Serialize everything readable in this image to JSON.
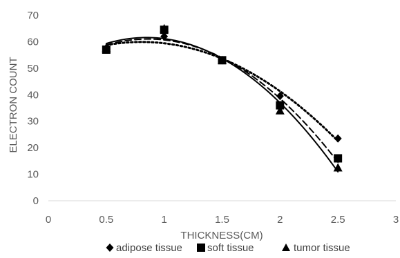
{
  "chart_data": {
    "type": "scatter",
    "xlabel": "THICKNESS(CM)",
    "ylabel": "ELECTRON COUNT",
    "xlim": [
      0,
      3
    ],
    "ylim": [
      0,
      70
    ],
    "xticks": [
      "0",
      "0.5",
      "1",
      "1.5",
      "2",
      "2.5",
      "3"
    ],
    "yticks": [
      "0",
      "10",
      "20",
      "30",
      "40",
      "50",
      "60",
      "70"
    ],
    "grid": false,
    "legend_position": "bottom",
    "series": [
      {
        "name": "adipose tissue",
        "marker": "diamond",
        "line": "dotted",
        "color": "#000000",
        "x": [
          0.5,
          1,
          1.5,
          2,
          2.5
        ],
        "y": [
          57.5,
          62,
          53,
          39.5,
          23.5
        ]
      },
      {
        "name": "soft tissue",
        "marker": "square",
        "line": "dashed",
        "color": "#000000",
        "x": [
          0.5,
          1,
          1.5,
          2,
          2.5
        ],
        "y": [
          57,
          64.5,
          53,
          36,
          16
        ]
      },
      {
        "name": "tumor tissue",
        "marker": "triangle",
        "line": "solid",
        "color": "#000000",
        "x": [
          0.5,
          1,
          1.5,
          2,
          2.5
        ],
        "y": [
          57.5,
          65,
          53,
          34,
          12.5
        ]
      }
    ]
  }
}
